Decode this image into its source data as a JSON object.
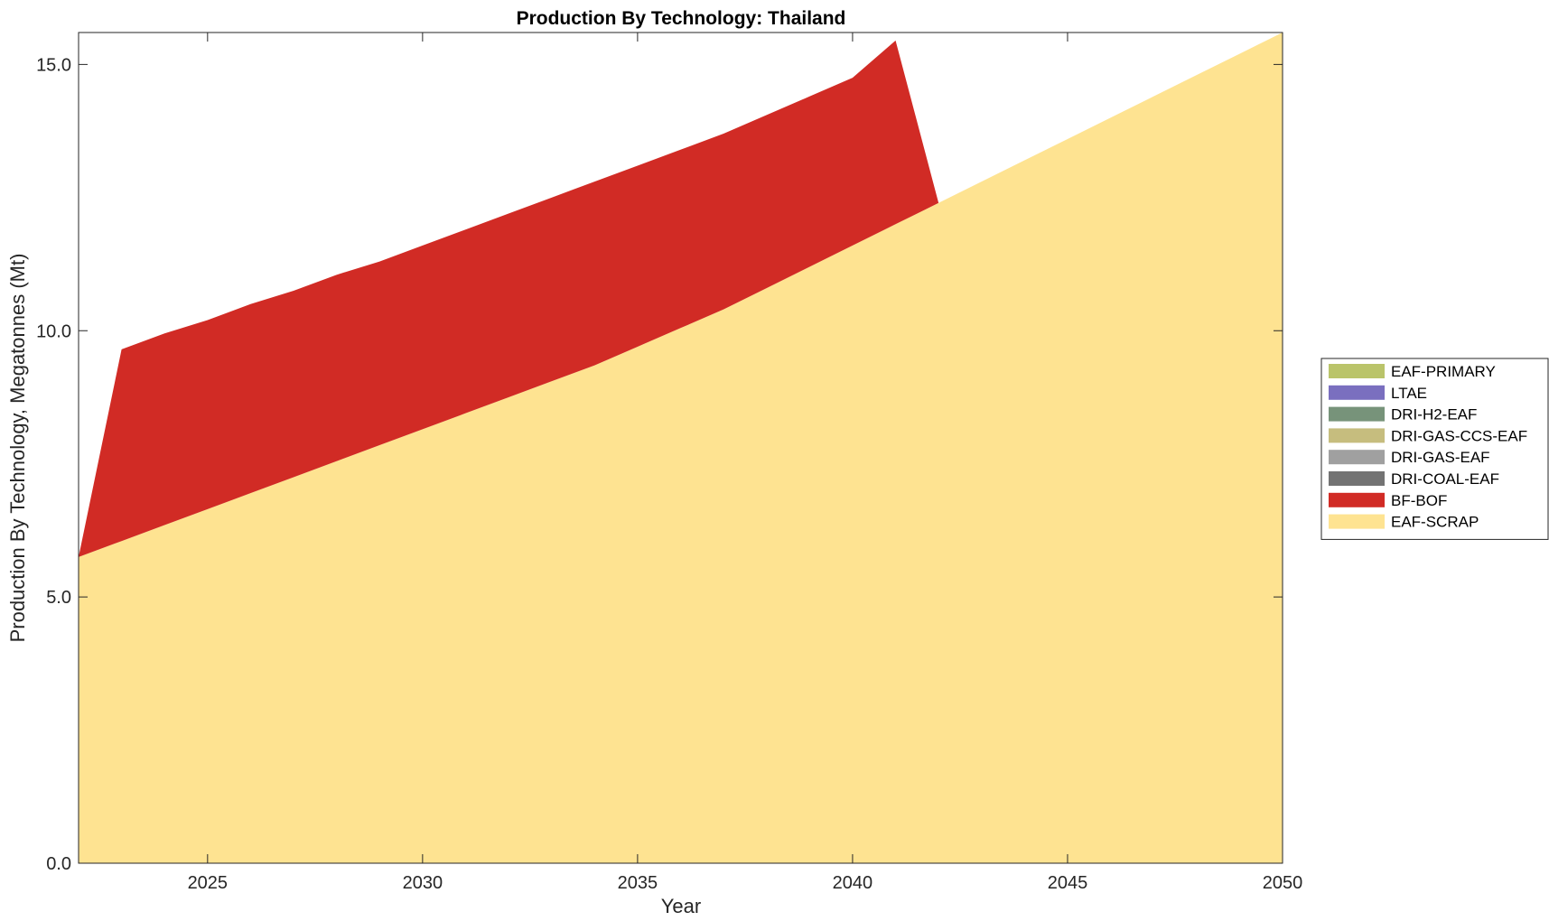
{
  "chart_data": {
    "type": "area",
    "stacked": true,
    "title": "Production By Technology: Thailand",
    "xlabel": "Year",
    "ylabel": "Production By Technology, Megatonnes (Mt)",
    "xlim": [
      2022,
      2050
    ],
    "ylim": [
      0,
      15.6
    ],
    "x_ticks": [
      2025,
      2030,
      2035,
      2040,
      2045,
      2050
    ],
    "y_ticks": [
      0,
      5,
      10,
      15
    ],
    "y_tick_labels": [
      "0.0",
      "5.0",
      "10.0",
      "15.0"
    ],
    "grid": false,
    "legend_position": "right",
    "x": [
      2022,
      2023,
      2024,
      2025,
      2026,
      2027,
      2028,
      2029,
      2030,
      2031,
      2032,
      2033,
      2034,
      2035,
      2036,
      2037,
      2038,
      2039,
      2040,
      2041,
      2042,
      2043,
      2044,
      2045,
      2046,
      2047,
      2048,
      2049,
      2050
    ],
    "series": [
      {
        "name": "EAF-SCRAP",
        "color": "#fee391",
        "values": [
          5.75,
          6.05,
          6.35,
          6.65,
          6.95,
          7.25,
          7.55,
          7.85,
          8.15,
          8.45,
          8.75,
          9.05,
          9.35,
          9.7,
          10.05,
          10.4,
          10.8,
          11.2,
          11.6,
          12.0,
          12.4,
          12.8,
          13.2,
          13.6,
          14.0,
          14.4,
          14.8,
          15.2,
          15.6
        ]
      },
      {
        "name": "BF-BOF",
        "color": "#d12b25",
        "values": [
          0,
          3.6,
          3.6,
          3.55,
          3.55,
          3.5,
          3.5,
          3.45,
          3.45,
          3.45,
          3.45,
          3.45,
          3.45,
          3.4,
          3.35,
          3.3,
          3.25,
          3.2,
          3.15,
          3.45,
          0,
          0,
          0,
          0,
          0,
          0,
          0,
          0,
          0
        ]
      },
      {
        "name": "DRI-COAL-EAF",
        "color": "#737373",
        "values": [
          0,
          0,
          0,
          0,
          0,
          0,
          0,
          0,
          0,
          0,
          0,
          0,
          0,
          0,
          0,
          0,
          0,
          0,
          0,
          0,
          0,
          0,
          0,
          0,
          0,
          0,
          0,
          0,
          0
        ]
      },
      {
        "name": "DRI-GAS-EAF",
        "color": "#a0a0a0",
        "values": [
          0,
          0,
          0,
          0,
          0,
          0,
          0,
          0,
          0,
          0,
          0,
          0,
          0,
          0,
          0,
          0,
          0,
          0,
          0,
          0,
          0,
          0,
          0,
          0,
          0,
          0,
          0,
          0,
          0
        ]
      },
      {
        "name": "DRI-GAS-CCS-EAF",
        "color": "#c6bd7e",
        "values": [
          0,
          0,
          0,
          0,
          0,
          0,
          0,
          0,
          0,
          0,
          0,
          0,
          0,
          0,
          0,
          0,
          0,
          0,
          0,
          0,
          0,
          0,
          0,
          0,
          0,
          0,
          0,
          0,
          0
        ]
      },
      {
        "name": "DRI-H2-EAF",
        "color": "#77937a",
        "values": [
          0,
          0,
          0,
          0,
          0,
          0,
          0,
          0,
          0,
          0,
          0,
          0,
          0,
          0,
          0,
          0,
          0,
          0,
          0,
          0,
          0,
          0,
          0,
          0,
          0,
          0,
          0,
          0,
          0
        ]
      },
      {
        "name": "LTAE",
        "color": "#7a6fbf",
        "values": [
          0,
          0,
          0,
          0,
          0,
          0,
          0,
          0,
          0,
          0,
          0,
          0,
          0,
          0,
          0,
          0,
          0,
          0,
          0,
          0,
          0,
          0,
          0,
          0,
          0,
          0,
          0,
          0,
          0
        ]
      },
      {
        "name": "EAF-PRIMARY",
        "color": "#bac46a",
        "values": [
          0,
          0,
          0,
          0,
          0,
          0,
          0,
          0,
          0,
          0,
          0,
          0,
          0,
          0,
          0,
          0,
          0,
          0,
          0,
          0,
          0,
          0,
          0,
          0,
          0,
          0,
          0,
          0,
          0
        ]
      }
    ],
    "legend_order": [
      "EAF-PRIMARY",
      "LTAE",
      "DRI-H2-EAF",
      "DRI-GAS-CCS-EAF",
      "DRI-GAS-EAF",
      "DRI-COAL-EAF",
      "BF-BOF",
      "EAF-SCRAP"
    ]
  }
}
